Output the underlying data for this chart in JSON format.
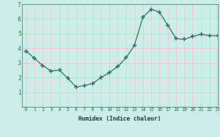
{
  "x": [
    0,
    1,
    2,
    3,
    4,
    5,
    6,
    7,
    8,
    9,
    10,
    11,
    12,
    13,
    14,
    15,
    16,
    17,
    18,
    19,
    20,
    21,
    22,
    23
  ],
  "y": [
    3.8,
    3.3,
    2.8,
    2.45,
    2.5,
    1.95,
    1.35,
    1.45,
    1.6,
    2.0,
    2.35,
    2.75,
    3.35,
    4.2,
    6.1,
    6.65,
    6.45,
    5.55,
    4.65,
    4.6,
    4.8,
    4.95,
    4.85,
    4.85
  ],
  "xlabel": "Humidex (Indice chaleur)",
  "ylim": [
    0,
    7
  ],
  "xlim": [
    -0.5,
    23
  ],
  "line_color": "#2d7a6e",
  "bg_color": "#cceee8",
  "grid_color": "#e8c8c8",
  "tick_label_color": "#2d6060",
  "xlabel_color": "#1a3a3a",
  "marker": "+",
  "marker_size": 5,
  "linewidth": 1.0,
  "yticks": [
    1,
    2,
    3,
    4,
    5,
    6,
    7
  ],
  "xticks": [
    0,
    1,
    2,
    3,
    4,
    5,
    6,
    7,
    8,
    9,
    10,
    11,
    12,
    13,
    14,
    15,
    16,
    17,
    18,
    19,
    20,
    21,
    22,
    23
  ]
}
